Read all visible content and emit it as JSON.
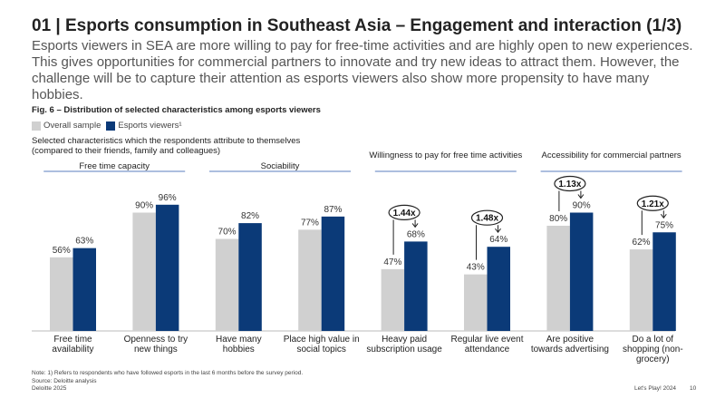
{
  "header": {
    "title": "01 | Esports consumption in Southeast Asia – Engagement and interaction (1/3)",
    "subtitle": "Esports viewers in SEA are more willing to pay for free-time activities and are highly open to new experiences. This gives opportunities for commercial partners to innovate and try new ideas to attract them. However, the challenge will be to capture their attention as esports viewers also show more propensity to have many hobbies."
  },
  "chart_data": {
    "type": "bar",
    "title": "Fig. 6 – Distribution of selected characteristics among esports viewers",
    "subtitle": "Selected characteristics which the respondents attribute to themselves (compared to their friends, family and colleagues)",
    "categories": [
      "Free time availability",
      "Openness to try new things",
      "Have many hobbies",
      "Place high value in social topics",
      "Heavy paid subscription usage",
      "Regular live event attendance",
      "Are positive towards advertising",
      "Do a lot of shopping (non-grocery)"
    ],
    "groups": [
      "Free time capacity",
      "Sociability",
      "Willingness to pay for free time activities",
      "Accessibility for commercial partners"
    ],
    "series": [
      {
        "name": "Overall sample",
        "color": "#d0d0d0",
        "values": [
          56,
          90,
          70,
          77,
          47,
          43,
          80,
          62
        ],
        "value_labels": [
          "56%",
          "90%",
          "70%",
          "77%",
          "47%",
          "43%",
          "80%",
          "62%"
        ]
      },
      {
        "name": "Esports viewers¹",
        "color": "#0b3a78",
        "values": [
          63,
          96,
          82,
          87,
          68,
          64,
          90,
          75
        ],
        "value_labels": [
          "63%",
          "96%",
          "82%",
          "87%",
          "68%",
          "64%",
          "90%",
          "75%"
        ]
      }
    ],
    "multipliers": [
      null,
      null,
      null,
      null,
      "1.44x",
      "1.48x",
      "1.13x",
      "1.21x"
    ],
    "ylim": [
      0,
      100
    ]
  },
  "footer": {
    "note": "Note: 1) Refers to respondents who have followed esports in the last 6 months before the survey period.",
    "source": "Source: Deloitte analysis",
    "copyright": "Deloitte 2025",
    "report": "Let's Play! 2024",
    "page": "10"
  }
}
